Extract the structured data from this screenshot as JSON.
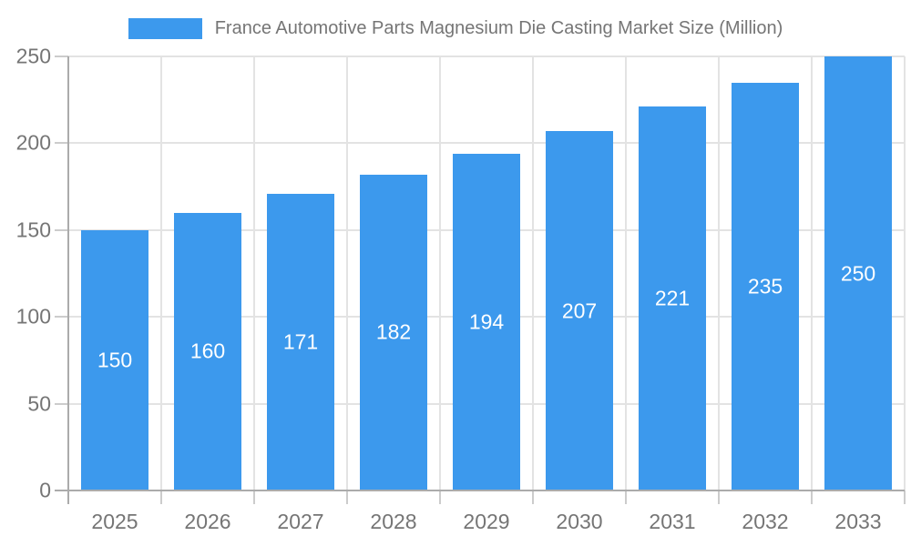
{
  "chart_data": {
    "type": "bar",
    "title": "France Automotive Parts Magnesium Die Casting Market Size (Million)",
    "legend_entries": [
      "France Automotive Parts Magnesium Die Casting Market Size (Million)"
    ],
    "legend_position": "top",
    "categories": [
      "2025",
      "2026",
      "2027",
      "2028",
      "2029",
      "2030",
      "2031",
      "2032",
      "2033"
    ],
    "values": [
      150,
      160,
      171,
      182,
      194,
      207,
      221,
      235,
      250
    ],
    "value_labels_visible": true,
    "xlabel": "",
    "ylabel": "",
    "ylim": [
      0,
      250
    ],
    "y_ticks": [
      0,
      50,
      100,
      150,
      200,
      250
    ],
    "grid": "on"
  },
  "colors": {
    "bar": "#3c99ed",
    "title_text": "#757575",
    "axis_text": "#757575",
    "value_label_text": "#ffffff",
    "grid_line": "#e3e3e3",
    "tick_line": "#cccccc",
    "axis_line": "#ababab",
    "background": "#ffffff"
  }
}
